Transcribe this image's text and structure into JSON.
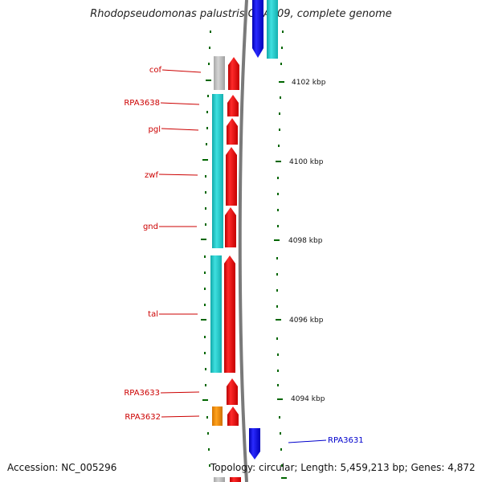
{
  "title": "Rhodopseudomonas palustris CGA009, complete genome",
  "footer": {
    "accession": "Accession: NC_005296",
    "stats": "Topology: circular; Length: 5,459,213 bp; Genes: 4,872"
  },
  "scale": {
    "unit": "kbp",
    "ticks": [
      {
        "label": "4102 kbp",
        "value": 4102
      },
      {
        "label": "4100 kbp",
        "value": 4100
      },
      {
        "label": "4098 kbp",
        "value": 4098
      },
      {
        "label": "4096 kbp",
        "value": 4096
      },
      {
        "label": "4094 kbp",
        "value": 4094
      }
    ]
  },
  "genes": [
    {
      "name": "cof",
      "strand": "reverse"
    },
    {
      "name": "RPA3638",
      "strand": "reverse"
    },
    {
      "name": "pgl",
      "strand": "reverse"
    },
    {
      "name": "zwf",
      "strand": "reverse"
    },
    {
      "name": "gnd",
      "strand": "reverse"
    },
    {
      "name": "tal",
      "strand": "reverse"
    },
    {
      "name": "RPA3633",
      "strand": "reverse"
    },
    {
      "name": "RPA3632",
      "strand": "reverse"
    },
    {
      "name": "RPA3631",
      "strand": "forward"
    }
  ],
  "colors": {
    "reverse_gene": "#ee0000",
    "forward_gene": "#1010dd",
    "reverse_gene_label": "#cc0000",
    "forward_gene_label": "#0000cc",
    "cds_cyan": "#1ec8c8",
    "cds_gray": "#bdbdbd",
    "cds_orange": "#f08a00",
    "backbone": "#7a7a7a",
    "tick": "#006600"
  }
}
